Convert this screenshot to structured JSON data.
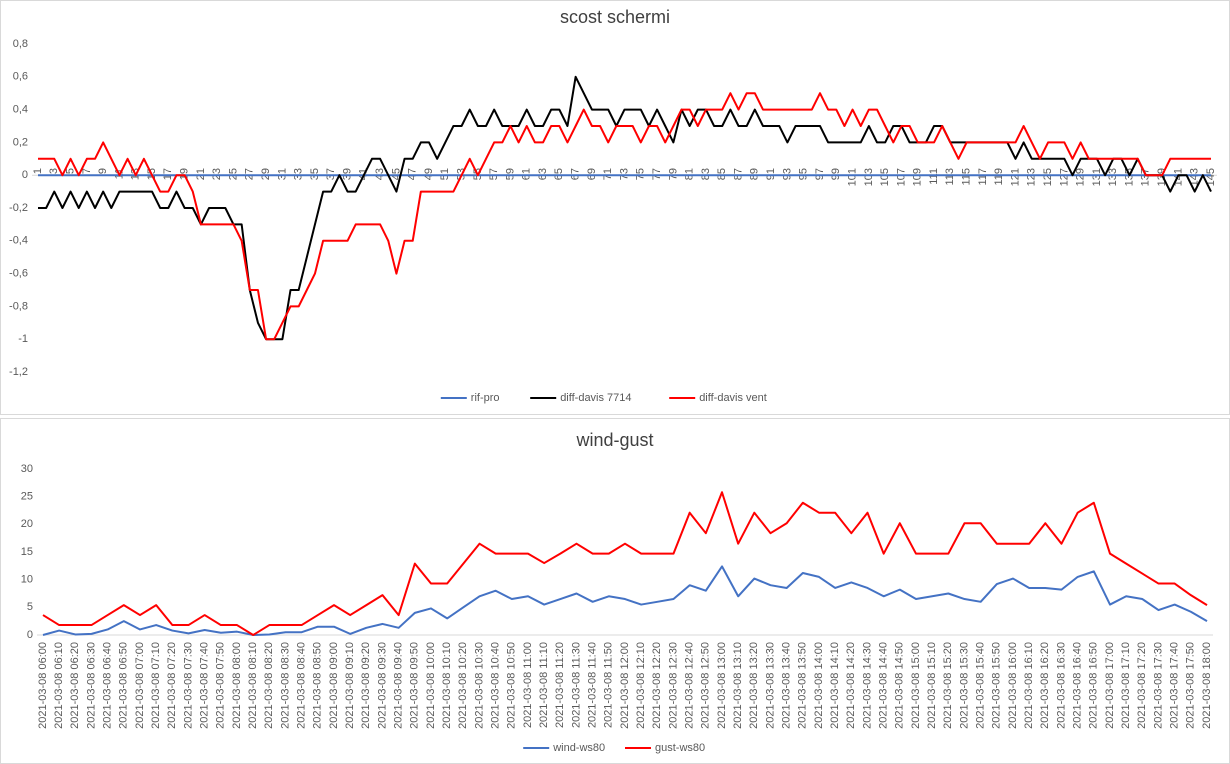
{
  "chart_data": [
    {
      "type": "line",
      "title": "scost schermi",
      "categories": [
        1,
        null,
        3,
        null,
        5,
        null,
        7,
        null,
        9,
        null,
        11,
        null,
        13,
        null,
        15,
        null,
        17,
        null,
        19,
        null,
        21,
        null,
        23,
        null,
        25,
        null,
        27,
        null,
        29,
        null,
        31,
        null,
        33,
        null,
        35,
        null,
        37,
        null,
        39,
        null,
        41,
        null,
        43,
        null,
        45,
        null,
        47,
        null,
        49,
        null,
        51,
        null,
        53,
        null,
        55,
        null,
        57,
        null,
        59,
        null,
        61,
        null,
        63,
        null,
        65,
        null,
        67,
        null,
        69,
        null,
        71,
        null,
        73,
        null,
        75,
        null,
        77,
        null,
        79,
        null,
        81,
        null,
        83,
        null,
        85,
        null,
        87,
        null,
        89,
        null,
        91,
        null,
        93,
        null,
        95,
        null,
        97,
        null,
        99,
        null,
        101,
        null,
        103,
        null,
        105,
        null,
        107,
        null,
        109,
        null,
        111,
        null,
        113,
        null,
        115,
        null,
        117,
        null,
        119,
        null,
        121,
        null,
        123,
        null,
        125,
        null,
        127,
        null,
        129,
        null,
        131,
        null,
        133,
        null,
        135,
        null,
        137,
        null,
        139,
        null,
        141,
        null,
        143,
        null,
        145
      ],
      "ylim": [
        -1.2,
        0.8
      ],
      "yticks": [
        {
          "value": 0.8,
          "label": "0,8"
        },
        {
          "value": 0.6,
          "label": "0,6"
        },
        {
          "value": 0.4,
          "label": "0,4"
        },
        {
          "value": 0.2,
          "label": "0,2"
        },
        0,
        {
          "value": -0.2,
          "label": "-0,2"
        },
        {
          "value": -0.4,
          "label": "-0,4"
        },
        {
          "value": -0.6,
          "label": "-0,6"
        },
        {
          "value": -0.8,
          "label": "-0,8"
        },
        -1,
        {
          "value": -1.2,
          "label": "-1,2"
        }
      ],
      "grid": false,
      "legend": "bottom",
      "series": [
        {
          "name": "rif-pro",
          "color": "#4472c4",
          "values": [
            0,
            0,
            0,
            0,
            0,
            0,
            0,
            0,
            0,
            0,
            0,
            0,
            0,
            0,
            0,
            0,
            0,
            0,
            0,
            0,
            0,
            0,
            0,
            0,
            0,
            0,
            0,
            0,
            0,
            0,
            0,
            0,
            0,
            0,
            0,
            0,
            0,
            0,
            0,
            0,
            0,
            0,
            0,
            0,
            0,
            0,
            0,
            0,
            0,
            0,
            0,
            0,
            0,
            0,
            0,
            0,
            0,
            0,
            0,
            0,
            0,
            0,
            0,
            0,
            0,
            0,
            0,
            0,
            0,
            0,
            0,
            0,
            0,
            0,
            0,
            0,
            0,
            0,
            0,
            0,
            0,
            0,
            0,
            0,
            0,
            0,
            0,
            0,
            0,
            0,
            0,
            0,
            0,
            0,
            0,
            0,
            0,
            0,
            0,
            0,
            0,
            0,
            0,
            0,
            0,
            0,
            0,
            0,
            0,
            0,
            0,
            0,
            0,
            0,
            0,
            0,
            0,
            0,
            0,
            0,
            0,
            0,
            0,
            0,
            0,
            0,
            0,
            0,
            0,
            0,
            0,
            0,
            0,
            0,
            0,
            0,
            0,
            0,
            0,
            0,
            0,
            0,
            0,
            0,
            0
          ]
        },
        {
          "name": "diff-davis 7714",
          "color": "#000000",
          "values": [
            -0.2,
            -0.2,
            -0.1,
            -0.2,
            -0.1,
            -0.2,
            -0.1,
            -0.2,
            -0.1,
            -0.2,
            -0.1,
            -0.1,
            -0.1,
            -0.1,
            -0.1,
            -0.2,
            -0.2,
            -0.1,
            -0.2,
            -0.2,
            -0.3,
            -0.2,
            -0.2,
            -0.2,
            -0.3,
            -0.3,
            -0.7,
            -0.9,
            -1,
            -1,
            -1,
            -0.7,
            -0.7,
            -0.5,
            -0.3,
            -0.1,
            -0.1,
            0,
            -0.1,
            -0.1,
            0,
            0.1,
            0.1,
            0,
            -0.1,
            0.1,
            0.1,
            0.2,
            0.2,
            0.1,
            0.2,
            0.3,
            0.3,
            0.4,
            0.3,
            0.3,
            0.4,
            0.3,
            0.3,
            0.3,
            0.4,
            0.3,
            0.3,
            0.4,
            0.4,
            0.3,
            0.6,
            0.5,
            0.4,
            0.4,
            0.4,
            0.3,
            0.4,
            0.4,
            0.4,
            0.3,
            0.4,
            0.3,
            0.2,
            0.4,
            0.3,
            0.4,
            0.4,
            0.3,
            0.3,
            0.4,
            0.3,
            0.3,
            0.4,
            0.3,
            0.3,
            0.3,
            0.2,
            0.3,
            0.3,
            0.3,
            0.3,
            0.2,
            0.2,
            0.2,
            0.2,
            0.2,
            0.3,
            0.2,
            0.2,
            0.3,
            0.3,
            0.2,
            0.2,
            0.2,
            0.3,
            0.3,
            0.2,
            0.2,
            0.2,
            0.2,
            0.2,
            0.2,
            0.2,
            0.2,
            0.1,
            0.2,
            0.1,
            0.1,
            0.1,
            0.1,
            0.1,
            0,
            0.1,
            0.1,
            0.1,
            0,
            0.1,
            0.1,
            0,
            0.1,
            0,
            0,
            0,
            -0.1,
            0,
            0,
            -0.1,
            0,
            -0.1
          ]
        },
        {
          "name": "diff-davis vent",
          "color": "#ff0000",
          "values": [
            0.1,
            0.1,
            0.1,
            0,
            0.1,
            0,
            0.1,
            0.1,
            0.2,
            0.1,
            0,
            0.1,
            0,
            0.1,
            0,
            -0.1,
            -0.1,
            0,
            0,
            -0.1,
            -0.3,
            -0.3,
            -0.3,
            -0.3,
            -0.3,
            -0.4,
            -0.7,
            -0.7,
            -1,
            -1,
            -0.9,
            -0.8,
            -0.8,
            -0.7,
            -0.6,
            -0.4,
            -0.4,
            -0.4,
            -0.4,
            -0.3,
            -0.3,
            -0.3,
            -0.3,
            -0.4,
            -0.6,
            -0.4,
            -0.4,
            -0.1,
            -0.1,
            -0.1,
            -0.1,
            -0.1,
            0,
            0.1,
            0,
            0.1,
            0.2,
            0.2,
            0.3,
            0.2,
            0.3,
            0.2,
            0.2,
            0.3,
            0.3,
            0.2,
            0.3,
            0.4,
            0.3,
            0.3,
            0.2,
            0.3,
            0.3,
            0.3,
            0.2,
            0.3,
            0.3,
            0.2,
            0.3,
            0.4,
            0.4,
            0.3,
            0.4,
            0.4,
            0.4,
            0.5,
            0.4,
            0.5,
            0.5,
            0.4,
            0.4,
            0.4,
            0.4,
            0.4,
            0.4,
            0.4,
            0.5,
            0.4,
            0.4,
            0.3,
            0.4,
            0.3,
            0.4,
            0.4,
            0.3,
            0.2,
            0.3,
            0.3,
            0.2,
            0.2,
            0.2,
            0.3,
            0.2,
            0.1,
            0.2,
            0.2,
            0.2,
            0.2,
            0.2,
            0.2,
            0.2,
            0.3,
            0.2,
            0.1,
            0.2,
            0.2,
            0.2,
            0.1,
            0.2,
            0.1,
            0.1,
            0.1,
            0.1,
            0.1,
            0.1,
            0.1,
            0,
            0,
            0,
            0.1,
            0.1,
            0.1,
            0.1,
            0.1,
            0.1
          ]
        }
      ]
    },
    {
      "type": "line",
      "title": "wind-gust",
      "categories": [
        "2021-03-08 06:00",
        "2021-03-08 06:10",
        "2021-03-08 06:20",
        "2021-03-08 06:30",
        "2021-03-08 06:40",
        "2021-03-08 06:50",
        "2021-03-08 07:00",
        "2021-03-08 07:10",
        "2021-03-08 07:20",
        "2021-03-08 07:30",
        "2021-03-08 07:40",
        "2021-03-08 07:50",
        "2021-03-08 08:00",
        "2021-03-08 08:10",
        "2021-03-08 08:20",
        "2021-03-08 08:30",
        "2021-03-08 08:40",
        "2021-03-08 08:50",
        "2021-03-08 09:00",
        "2021-03-08 09:10",
        "2021-03-08 09:20",
        "2021-03-08 09:30",
        "2021-03-08 09:40",
        "2021-03-08 09:50",
        "2021-03-08 10:00",
        "2021-03-08 10:10",
        "2021-03-08 10:20",
        "2021-03-08 10:30",
        "2021-03-08 10:40",
        "2021-03-08 10:50",
        "2021-03-08 11:00",
        "2021-03-08 11:10",
        "2021-03-08 11:20",
        "2021-03-08 11:30",
        "2021-03-08 11:40",
        "2021-03-08 11:50",
        "2021-03-08 12:00",
        "2021-03-08 12:10",
        "2021-03-08 12:20",
        "2021-03-08 12:30",
        "2021-03-08 12:40",
        "2021-03-08 12:50",
        "2021-03-08 13:00",
        "2021-03-08 13:10",
        "2021-03-08 13:20",
        "2021-03-08 13:30",
        "2021-03-08 13:40",
        "2021-03-08 13:50",
        "2021-03-08 14:00",
        "2021-03-08 14:10",
        "2021-03-08 14:20",
        "2021-03-08 14:30",
        "2021-03-08 14:40",
        "2021-03-08 14:50",
        "2021-03-08 15:00",
        "2021-03-08 15:10",
        "2021-03-08 15:20",
        "2021-03-08 15:30",
        "2021-03-08 15:40",
        "2021-03-08 15:50",
        "2021-03-08 16:00",
        "2021-03-08 16:10",
        "2021-03-08 16:20",
        "2021-03-08 16:30",
        "2021-03-08 16:40",
        "2021-03-08 16:50",
        "2021-03-08 17:00",
        "2021-03-08 17:10",
        "2021-03-08 17:20",
        "2021-03-08 17:30",
        "2021-03-08 17:40",
        "2021-03-08 17:50",
        "2021-03-08 18:00"
      ],
      "ylim": [
        0,
        30
      ],
      "yticks": [
        0,
        5,
        10,
        15,
        20,
        25,
        30
      ],
      "grid": false,
      "legend": "bottom",
      "series": [
        {
          "name": "wind-ws80",
          "color": "#4472c4",
          "values": [
            0,
            0.8,
            0.1,
            0.2,
            1,
            2.5,
            1,
            1.8,
            0.8,
            0.3,
            0.9,
            0.4,
            0.6,
            0,
            0.1,
            0.5,
            0.5,
            1.5,
            1.5,
            0.2,
            1.3,
            2,
            1.3,
            4,
            4.8,
            3,
            5,
            7,
            8,
            6.5,
            7,
            5.5,
            6.5,
            7.5,
            6,
            7,
            6.5,
            5.5,
            6,
            6.5,
            9,
            8,
            12.4,
            7,
            10.2,
            9,
            8.5,
            11.2,
            10.5,
            8.5,
            9.5,
            8.5,
            7,
            8.2,
            6.5,
            7,
            7.5,
            6.5,
            6,
            9.2,
            10.2,
            8.5,
            8.5,
            8.2,
            10.5,
            11.5,
            5.5,
            7,
            6.5,
            4.5,
            5.5,
            4.2,
            2.5
          ]
        },
        {
          "name": "gust-ws80",
          "color": "#ff0000",
          "values": [
            3.6,
            1.8,
            1.8,
            1.8,
            3.6,
            5.4,
            3.6,
            5.4,
            1.8,
            1.8,
            3.6,
            1.8,
            1.8,
            0,
            1.8,
            1.8,
            1.8,
            3.6,
            5.4,
            3.6,
            5.4,
            7.2,
            3.6,
            12.9,
            9.3,
            9.3,
            12.9,
            16.5,
            14.7,
            14.7,
            14.7,
            13,
            14.7,
            16.5,
            14.7,
            14.7,
            16.5,
            14.7,
            14.7,
            14.7,
            22.1,
            18.4,
            25.8,
            16.5,
            22.1,
            18.4,
            20.2,
            23.9,
            22.1,
            22.1,
            18.4,
            22.1,
            14.7,
            20.2,
            14.7,
            14.7,
            14.7,
            20.2,
            20.2,
            16.5,
            16.5,
            16.5,
            20.2,
            16.5,
            22.1,
            23.9,
            14.7,
            12.9,
            11.1,
            9.3,
            9.3,
            7.2,
            5.4
          ]
        }
      ]
    }
  ]
}
